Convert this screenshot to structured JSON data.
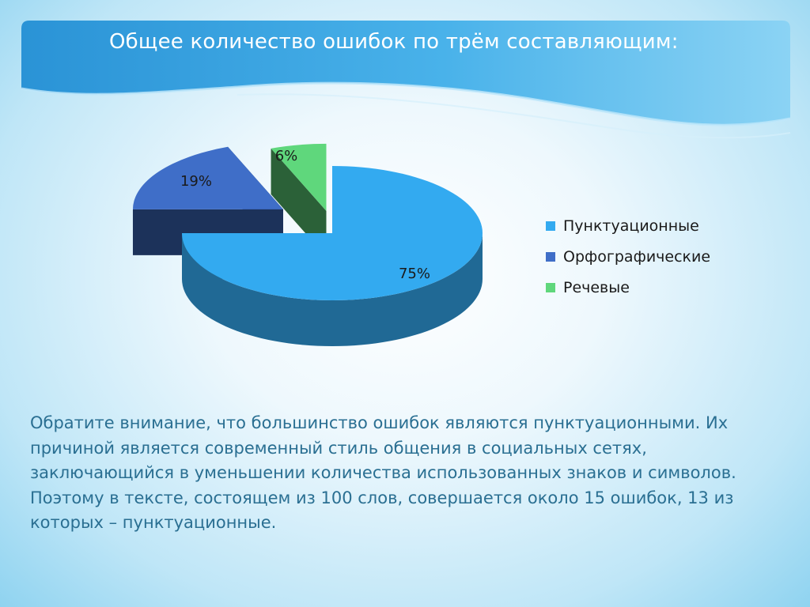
{
  "slide": {
    "title": "Общее количество ошибок по трём составляющим:",
    "note": "Обратите внимание, что большинство ошибок являются пунктуационными. Их причиной является современный стиль общения в социальных сетях, заключающийся в уменьшении количества использованных знаков и символов. Поэтому в тексте, состоящем из 100 слов, совершается около 15 ошибок, 13 из которых – пунктуационные."
  },
  "chart_data": {
    "type": "pie",
    "style": "3d-exploded",
    "legend_position": "right",
    "slices": [
      {
        "name": "Пунктуационные",
        "value": 75,
        "label": "75%",
        "color": "#33aaf0"
      },
      {
        "name": "Орфографические",
        "value": 19,
        "label": "19%",
        "color": "#3f6ec8"
      },
      {
        "name": "Речевые",
        "value": 6,
        "label": "6%",
        "color": "#5fd77c"
      }
    ]
  }
}
